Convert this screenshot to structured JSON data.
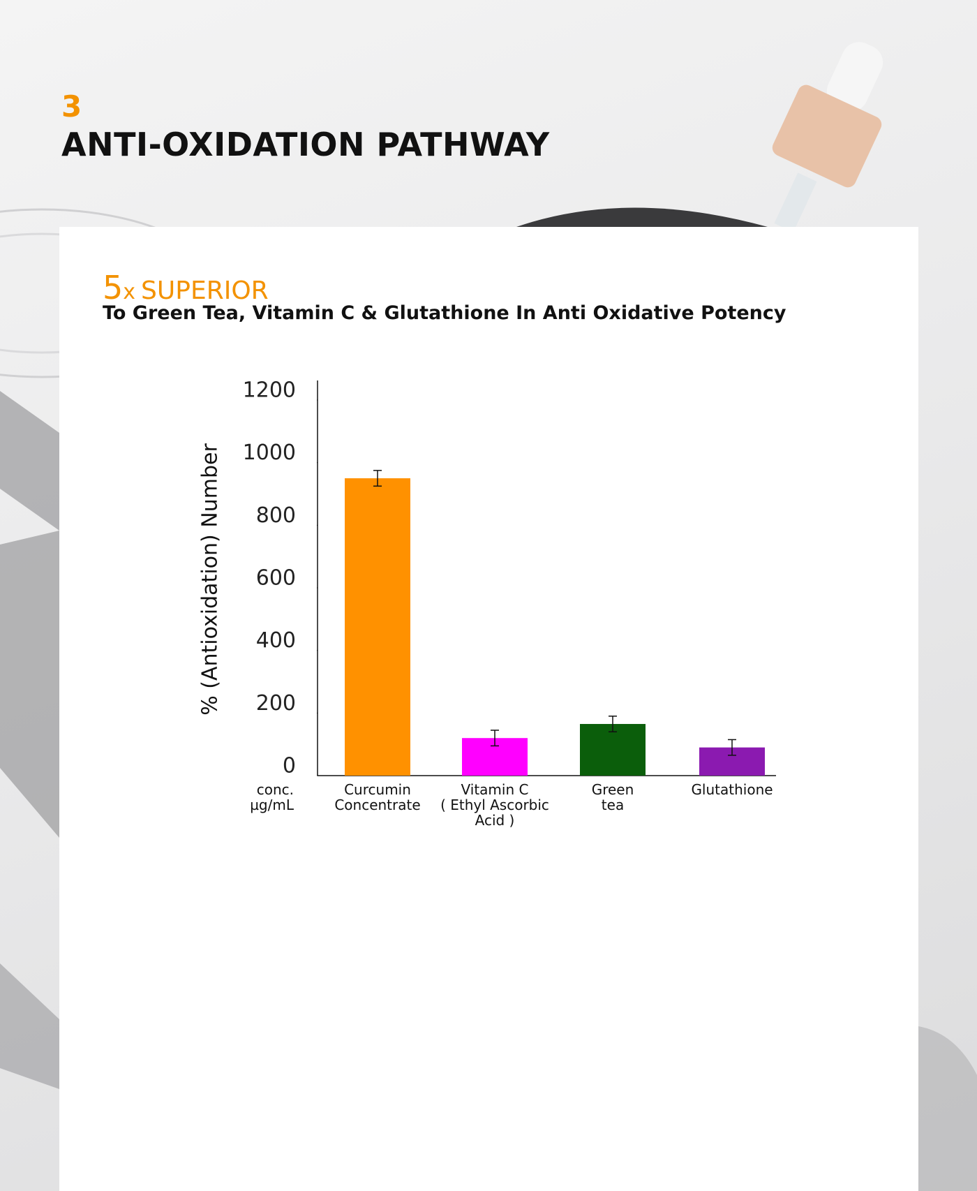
{
  "header": {
    "number": "3",
    "title": "ANTI-OXIDATION PATHWAY"
  },
  "badge": {
    "number": "5",
    "unit": "x",
    "word": "SUPERIOR"
  },
  "subtitle": "To Green Tea, Vitamin C & Glutathione In Anti Oxidative Potency",
  "chart_data": {
    "type": "bar",
    "categories": [
      "Curcumin\nConcentrate",
      "Vitamin C\n( Ethyl Ascorbic\nAcid )",
      "Green\ntea",
      "Glutathione"
    ],
    "values": [
      950,
      120,
      165,
      90
    ],
    "errors": [
      25,
      25,
      25,
      25
    ],
    "colors": [
      "#ff9100",
      "#ff00ff",
      "#0b5e0b",
      "#8b1ab0"
    ],
    "ylabel": "% (Antioxidation) Number",
    "xlabel": "conc.\nµg/mL",
    "ylim": [
      0,
      1200
    ],
    "yticks": [
      0,
      200,
      400,
      600,
      800,
      1000,
      1200
    ]
  }
}
